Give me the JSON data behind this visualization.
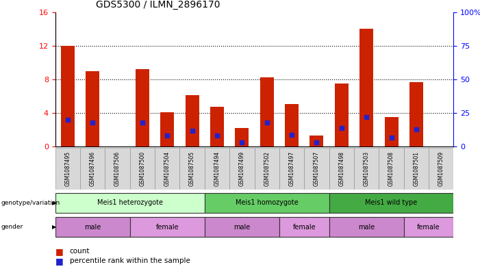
{
  "title": "GDS5300 / ILMN_2896170",
  "samples": [
    "GSM1087495",
    "GSM1087496",
    "GSM1087506",
    "GSM1087500",
    "GSM1087504",
    "GSM1087505",
    "GSM1087494",
    "GSM1087499",
    "GSM1087502",
    "GSM1087497",
    "GSM1087507",
    "GSM1087498",
    "GSM1087503",
    "GSM1087508",
    "GSM1087501",
    "GSM1087509"
  ],
  "counts": [
    12.0,
    9.0,
    0.0,
    9.2,
    4.1,
    6.1,
    4.7,
    2.2,
    8.2,
    5.1,
    1.3,
    7.5,
    14.0,
    3.5,
    7.7,
    0.0
  ],
  "percentile_ranks": [
    20.0,
    18.0,
    0.0,
    18.0,
    8.0,
    12.0,
    8.0,
    3.0,
    18.0,
    8.5,
    3.0,
    14.0,
    22.0,
    6.5,
    13.0,
    0.0
  ],
  "ylim_left": [
    0,
    16
  ],
  "ylim_right": [
    0,
    100
  ],
  "bar_color": "#cc2200",
  "marker_color": "#2222cc",
  "bg_color": "#ffffff",
  "genotype_groups": [
    {
      "label": "Meis1 heterozygote",
      "start": 0,
      "end": 6,
      "color": "#ccffcc"
    },
    {
      "label": "Meis1 homozygote",
      "start": 6,
      "end": 11,
      "color": "#66cc66"
    },
    {
      "label": "Meis1 wild type",
      "start": 11,
      "end": 16,
      "color": "#44aa44"
    }
  ],
  "gender_groups": [
    {
      "label": "male",
      "start": 0,
      "end": 3,
      "color": "#cc88cc"
    },
    {
      "label": "female",
      "start": 3,
      "end": 6,
      "color": "#dd99dd"
    },
    {
      "label": "male",
      "start": 6,
      "end": 9,
      "color": "#cc88cc"
    },
    {
      "label": "female",
      "start": 9,
      "end": 11,
      "color": "#dd99dd"
    },
    {
      "label": "male",
      "start": 11,
      "end": 14,
      "color": "#cc88cc"
    },
    {
      "label": "female",
      "start": 14,
      "end": 16,
      "color": "#dd99dd"
    }
  ],
  "legend_count_color": "#cc2200",
  "legend_marker_color": "#2222cc"
}
